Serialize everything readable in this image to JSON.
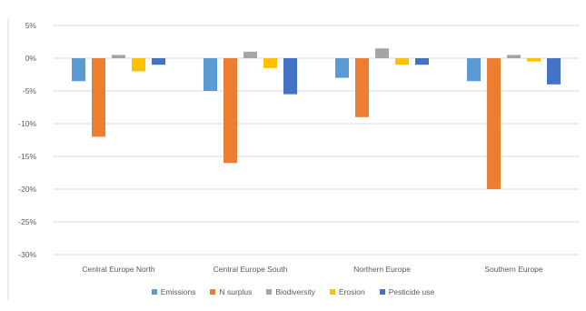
{
  "chart_data": {
    "type": "bar",
    "categories": [
      "Central Europe North",
      "Central Europe South",
      "Northern Europe",
      "Southern Europe"
    ],
    "series": [
      {
        "name": "Emissions",
        "color": "#5B9BD5",
        "values": [
          -3.5,
          -5,
          -3,
          -3.5
        ]
      },
      {
        "name": "N surplus",
        "color": "#ED7D31",
        "values": [
          -12,
          -16,
          -9,
          -20
        ]
      },
      {
        "name": "Biodiversity",
        "color": "#A5A5A5",
        "values": [
          0.5,
          1,
          1.5,
          0.5
        ]
      },
      {
        "name": "Erosion",
        "color": "#FFC000",
        "values": [
          -2,
          -1.5,
          -1,
          -0.5
        ]
      },
      {
        "name": "Pesticide use",
        "color": "#4472C4",
        "values": [
          -1,
          -5.5,
          -1,
          -4
        ]
      }
    ],
    "ylim": [
      -30,
      5
    ],
    "yticks": [
      "5%",
      "0%",
      "-5%",
      "-10%",
      "-15%",
      "-20%",
      "-25%",
      "-30%"
    ],
    "grid": true,
    "legend_position": "bottom"
  }
}
